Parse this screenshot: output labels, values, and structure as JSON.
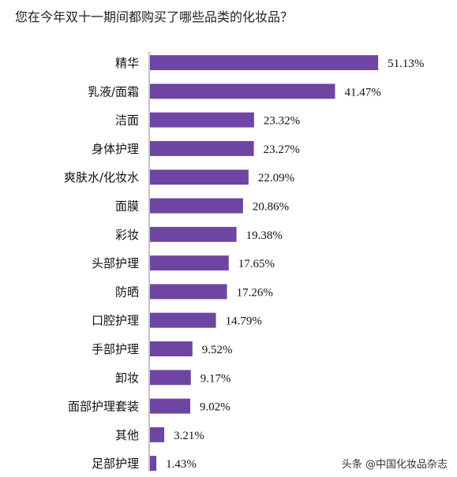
{
  "title": "您在今年双十一期间都购买了哪些品类的化妆品？",
  "watermark": "头条 @中国化妆品杂志",
  "colors": {
    "bar": "#6f45a3",
    "text": "#111111"
  },
  "chart_data": {
    "type": "bar",
    "orientation": "horizontal",
    "categories": [
      "精华",
      "乳液/面霜",
      "洁面",
      "身体护理",
      "爽肤水/化妆水",
      "面膜",
      "彩妆",
      "头部护理",
      "防晒",
      "口腔护理",
      "手部护理",
      "卸妆",
      "面部护理套装",
      "其他",
      "足部护理"
    ],
    "values": [
      51.13,
      41.47,
      23.32,
      23.27,
      22.09,
      20.86,
      19.38,
      17.65,
      17.26,
      14.79,
      9.52,
      9.17,
      9.02,
      3.21,
      1.43
    ],
    "value_labels": [
      "51.13%",
      "41.47%",
      "23.32%",
      "23.27%",
      "22.09%",
      "20.86%",
      "19.38%",
      "17.65%",
      "17.26%",
      "14.79%",
      "9.52%",
      "9.17%",
      "9.02%",
      "3.21%",
      "1.43%"
    ],
    "title": "您在今年双十一期间都购买了哪些品类的化妆品？",
    "xlabel": "",
    "ylabel": "",
    "xlim": [
      0,
      55
    ],
    "grid": false,
    "legend": "none"
  }
}
